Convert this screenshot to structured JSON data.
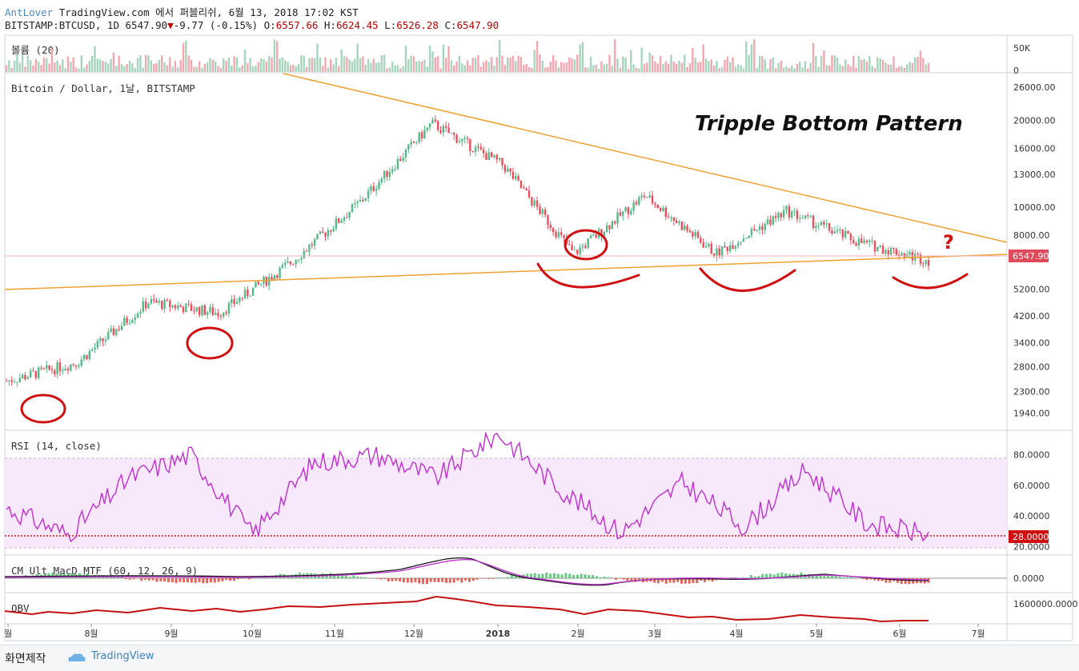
{
  "header": {
    "author": "AntLover",
    "publish": "TradingView.com 에서 퍼블리쉬, 6월 13, 2018 17:02 KST",
    "symbol": "BITSTAMP:BTCUSD, 1D 6547.90",
    "change_arrow": "▼",
    "change": "-9.77 (-0.15%)",
    "o_label": "O:",
    "o_value": "6557.66",
    "h_label": "H:",
    "h_value": "6624.45",
    "l_label": "L:",
    "l_value": "6526.28",
    "c_label": "C:",
    "c_value": "6547.90"
  },
  "panes": {
    "volume": {
      "label": "볼륨 (20)",
      "ticks": [
        "50K",
        "0"
      ]
    },
    "price": {
      "label": "Bitcoin / Dollar, 1날, BITSTAMP",
      "annotation": "Tripple Bottom Pattern",
      "question_mark": "?",
      "last_price_tag": "6547.90",
      "ticks": [
        "26000.00",
        "20000.00",
        "16000.00",
        "13000.00",
        "10000.00",
        "8000.00",
        "5200.00",
        "4200.00",
        "3400.00",
        "2800.00",
        "2300.00",
        "1940.00"
      ]
    },
    "rsi": {
      "label": "RSI (14, close)",
      "ticks": [
        "80.0000",
        "60.0000",
        "40.0000",
        "20.0000"
      ],
      "level_tag": "28.0000"
    },
    "macd": {
      "label": "CM_Ult_MacD_MTF (60, 12, 26, 9)",
      "ticks": [
        "0.0000"
      ]
    },
    "obv": {
      "label": "OBV",
      "ticks": [
        "1600000.0000"
      ]
    }
  },
  "xaxis": {
    "labels": [
      "월",
      "8월",
      "9월",
      "10월",
      "11월",
      "12월",
      "2018",
      "2월",
      "3월",
      "4월",
      "5월",
      "6월",
      "7월"
    ]
  },
  "footer": {
    "left_text": "화면제작",
    "brand": "TradingView"
  },
  "colors": {
    "up": "#53b987",
    "down": "#eb4d5c",
    "trendline": "#f0a030",
    "rsi": "#c030d0",
    "rsi_band": "#f7e9fb",
    "markup": "#d01010",
    "last_price": "#e04a5a"
  },
  "chart_data": [
    {
      "type": "candlestick",
      "title": "Bitcoin / Dollar, 1날, BITSTAMP",
      "scale": "log",
      "ylim": [
        1700,
        29000
      ],
      "x": [
        "7월 초",
        "8월",
        "9월",
        "10월",
        "11월",
        "12월",
        "12월 중순",
        "2018",
        "2월",
        "3월",
        "4월",
        "5월",
        "6월",
        "6월 13"
      ],
      "close": [
        2500,
        2900,
        4700,
        4300,
        6400,
        10500,
        19500,
        14000,
        6900,
        11000,
        6900,
        9700,
        7600,
        6547.9
      ]
    },
    {
      "type": "line",
      "title": "RSI (14, close)",
      "ylim": [
        15,
        95
      ],
      "x": [
        "7월 초",
        "7월 중순",
        "8월",
        "8월 말",
        "9월 중순",
        "10월",
        "11월",
        "12월",
        "12월 중순",
        "2018",
        "2월",
        "3월",
        "4월",
        "5월",
        "6월",
        "6월 13"
      ],
      "series": [
        {
          "values": [
            45,
            28,
            65,
            80,
            28,
            75,
            80,
            65,
            94,
            58,
            29,
            62,
            33,
            70,
            35,
            28
          ]
        }
      ],
      "levels": [
        80,
        28,
        20
      ]
    }
  ]
}
